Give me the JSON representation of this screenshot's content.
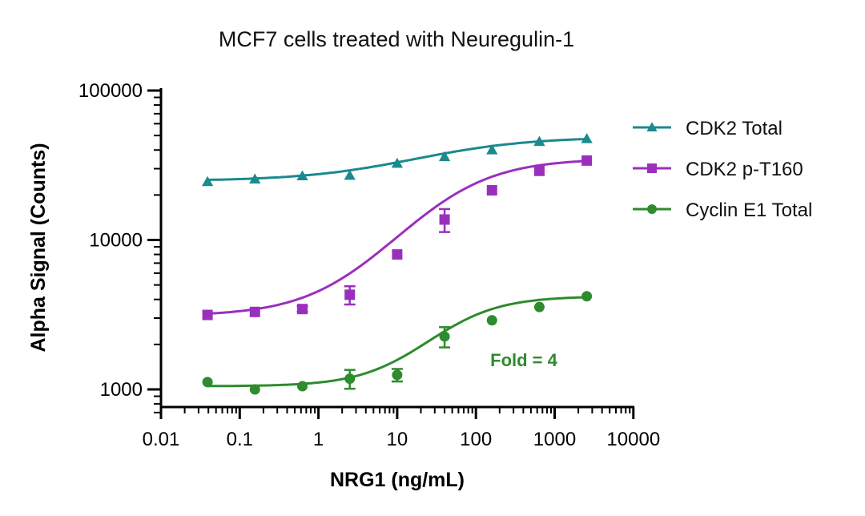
{
  "chart_data": {
    "type": "scatter",
    "title": "MCF7 cells treated with Neuregulin-1",
    "xlabel": "NRG1 (ng/mL)",
    "ylabel": "Alpha Signal (Counts)",
    "xscale": "log",
    "yscale": "log",
    "xlim": [
      0.01,
      10000
    ],
    "ylim": [
      700,
      100000
    ],
    "x_ticks": [
      0.01,
      0.1,
      1,
      10,
      100,
      1000,
      10000
    ],
    "x_tick_labels": [
      "0.01",
      "0.1",
      "1",
      "10",
      "100",
      "1000",
      "10000"
    ],
    "y_ticks": [
      1000,
      10000,
      100000
    ],
    "y_tick_labels": [
      "1000",
      "10000",
      "100000"
    ],
    "legend_position": "right",
    "fit": "4-parameter logistic curve per series",
    "series": [
      {
        "name": "CDK2 Total",
        "color": "#1a8a8e",
        "marker": "triangle",
        "x": [
          0.039,
          0.156,
          0.625,
          2.5,
          10,
          40,
          160,
          640,
          2560
        ],
        "y": [
          24500,
          25500,
          26800,
          27000,
          32500,
          36000,
          40000,
          45500,
          47500
        ],
        "fit": {
          "bottom": 24800,
          "top": 49000,
          "ec50": 30,
          "hill": 0.6
        }
      },
      {
        "name": "CDK2 p-T160",
        "color": "#9b2fbd",
        "marker": "square",
        "x": [
          0.039,
          0.156,
          0.625,
          2.5,
          10,
          40,
          160,
          640,
          2560
        ],
        "y": [
          3150,
          3300,
          3450,
          4300,
          8000,
          13700,
          21500,
          29000,
          34000
        ],
        "error": [
          0,
          0,
          150,
          600,
          0,
          2400,
          0,
          0,
          0
        ],
        "fit": {
          "bottom": 3100,
          "top": 35000,
          "ec50": 45,
          "hill": 0.8
        }
      },
      {
        "name": "Cyclin E1 Total",
        "color": "#2e8b2e",
        "marker": "circle",
        "x": [
          0.039,
          0.156,
          0.625,
          2.5,
          10,
          40,
          160,
          640,
          2560
        ],
        "y": [
          1120,
          1000,
          1050,
          1180,
          1250,
          2260,
          2900,
          3560,
          4200
        ],
        "error": [
          0,
          0,
          0,
          170,
          120,
          350,
          0,
          0,
          0
        ],
        "fit": {
          "bottom": 1050,
          "top": 4200,
          "ec50": 50,
          "hill": 1.0
        }
      }
    ],
    "annotations": [
      {
        "text": "Fold = 4",
        "color": "#2e8b2e",
        "x": 300,
        "y": 1900
      }
    ]
  }
}
